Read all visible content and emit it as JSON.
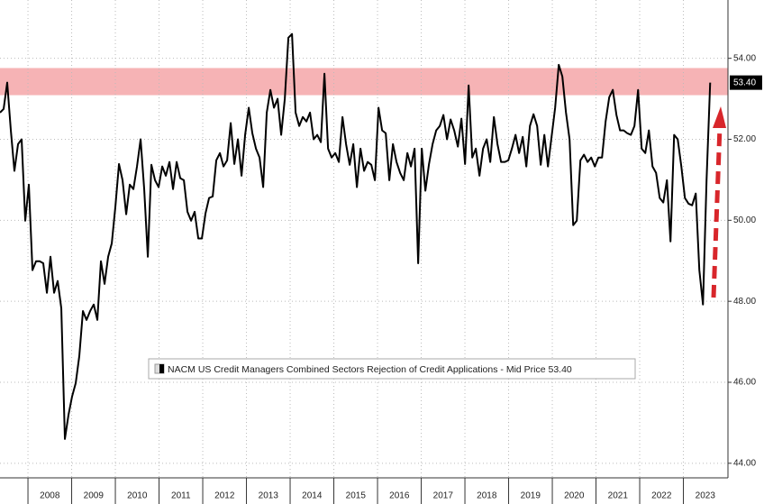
{
  "chart_data": {
    "type": "line",
    "series": [
      {
        "name": "NACM US Credit Managers Combined Sectors Rejection of Credit Applications - Mid Price 53.40",
        "color": "#000000",
        "x": [
          2007.36,
          2007.443,
          2007.525,
          2007.608,
          2007.69,
          2007.773,
          2007.855,
          2007.938,
          2008.02,
          2008.103,
          2008.185,
          2008.268,
          2008.35,
          2008.433,
          2008.515,
          2008.598,
          2008.68,
          2008.763,
          2008.845,
          2008.928,
          2009.01,
          2009.093,
          2009.175,
          2009.258,
          2009.34,
          2009.423,
          2009.505,
          2009.588,
          2009.67,
          2009.753,
          2009.835,
          2009.918,
          2010.0,
          2010.083,
          2010.165,
          2010.248,
          2010.33,
          2010.413,
          2010.495,
          2010.578,
          2010.66,
          2010.743,
          2010.825,
          2010.908,
          2010.99,
          2011.073,
          2011.155,
          2011.238,
          2011.32,
          2011.403,
          2011.485,
          2011.568,
          2011.65,
          2011.733,
          2011.815,
          2011.898,
          2011.98,
          2012.063,
          2012.145,
          2012.228,
          2012.31,
          2012.393,
          2012.475,
          2012.558,
          2012.64,
          2012.723,
          2012.805,
          2012.888,
          2012.97,
          2013.053,
          2013.135,
          2013.218,
          2013.3,
          2013.383,
          2013.465,
          2013.548,
          2013.63,
          2013.713,
          2013.795,
          2013.878,
          2013.96,
          2014.043,
          2014.125,
          2014.208,
          2014.29,
          2014.373,
          2014.455,
          2014.538,
          2014.62,
          2014.703,
          2014.785,
          2014.868,
          2014.95,
          2015.033,
          2015.115,
          2015.198,
          2015.28,
          2015.363,
          2015.445,
          2015.528,
          2015.61,
          2015.693,
          2015.775,
          2015.858,
          2015.94,
          2016.023,
          2016.105,
          2016.188,
          2016.27,
          2016.353,
          2016.435,
          2016.518,
          2016.6,
          2016.683,
          2016.765,
          2016.848,
          2016.93,
          2017.013,
          2017.095,
          2017.178,
          2017.26,
          2017.343,
          2017.425,
          2017.508,
          2017.59,
          2017.673,
          2017.755,
          2017.838,
          2017.92,
          2018.003,
          2018.085,
          2018.168,
          2018.25,
          2018.333,
          2018.415,
          2018.498,
          2018.58,
          2018.663,
          2018.745,
          2018.828,
          2018.91,
          2018.993,
          2019.075,
          2019.158,
          2019.24,
          2019.323,
          2019.405,
          2019.488,
          2019.57,
          2019.653,
          2019.735,
          2019.818,
          2019.9,
          2019.983,
          2020.065,
          2020.148,
          2020.23,
          2020.313,
          2020.395,
          2020.478,
          2020.56,
          2020.643,
          2020.725,
          2020.808,
          2020.89,
          2020.973,
          2021.055,
          2021.138,
          2021.22,
          2021.303,
          2021.385,
          2021.468,
          2021.55,
          2021.633,
          2021.715,
          2021.798,
          2021.88,
          2021.963,
          2022.045,
          2022.128,
          2022.21,
          2022.293,
          2022.375,
          2022.458,
          2022.54,
          2022.623,
          2022.705,
          2022.788,
          2022.87,
          2022.953,
          2023.035,
          2023.118,
          2023.2,
          2023.283,
          2023.365,
          2023.448,
          2023.53,
          2023.613
        ],
        "values": [
          52.66,
          52.75,
          53.4,
          52.22,
          51.22,
          51.88,
          52.0,
          49.99,
          50.88,
          48.77,
          48.99,
          48.99,
          48.94,
          48.21,
          49.1,
          48.21,
          48.5,
          47.83,
          44.6,
          45.2,
          45.65,
          45.98,
          46.65,
          47.76,
          47.54,
          47.76,
          47.92,
          47.54,
          48.99,
          48.43,
          49.1,
          49.43,
          50.33,
          51.39,
          50.99,
          50.15,
          50.88,
          50.77,
          51.33,
          52.0,
          50.77,
          49.1,
          51.37,
          50.99,
          50.82,
          51.33,
          51.1,
          51.44,
          50.77,
          51.44,
          51.04,
          50.99,
          50.21,
          49.99,
          50.21,
          49.55,
          49.55,
          50.17,
          50.55,
          50.59,
          51.48,
          51.66,
          51.33,
          51.48,
          52.4,
          51.39,
          52.0,
          51.1,
          52.11,
          52.78,
          52.15,
          51.77,
          51.55,
          50.82,
          52.66,
          53.22,
          52.78,
          53.0,
          52.11,
          53.0,
          54.51,
          54.6,
          52.66,
          52.33,
          52.55,
          52.44,
          52.66,
          52.0,
          52.11,
          51.93,
          53.62,
          51.77,
          51.55,
          51.66,
          51.44,
          52.55,
          51.88,
          51.37,
          51.88,
          50.82,
          51.77,
          51.22,
          51.44,
          51.37,
          50.99,
          52.78,
          52.22,
          52.15,
          50.99,
          51.88,
          51.44,
          51.17,
          50.99,
          51.66,
          51.33,
          51.77,
          48.94,
          51.77,
          50.73,
          51.39,
          51.88,
          52.22,
          52.33,
          52.6,
          52.0,
          52.49,
          52.22,
          51.82,
          52.51,
          51.39,
          53.33,
          51.55,
          51.77,
          51.1,
          51.77,
          52.0,
          51.44,
          52.55,
          51.88,
          51.44,
          51.44,
          51.48,
          51.77,
          52.11,
          51.66,
          52.06,
          51.33,
          52.33,
          52.62,
          52.33,
          51.37,
          52.11,
          51.33,
          52.06,
          52.78,
          53.84,
          53.55,
          52.66,
          52.0,
          49.88,
          49.99,
          51.48,
          51.62,
          51.44,
          51.55,
          51.33,
          51.55,
          51.55,
          52.44,
          53.04,
          53.22,
          52.6,
          52.22,
          52.22,
          52.15,
          52.11,
          52.33,
          53.22,
          51.77,
          51.66,
          52.22,
          51.33,
          51.17,
          50.55,
          50.44,
          50.99,
          49.48,
          52.11,
          52.0,
          51.33,
          50.55,
          50.41,
          50.37,
          50.66,
          48.77,
          47.92,
          50.99,
          53.4
        ]
      }
    ],
    "xlim": [
      2007.36,
      2024.02
    ],
    "xticks": [
      {
        "value": 2008,
        "label": "2008"
      },
      {
        "value": 2009,
        "label": "2009"
      },
      {
        "value": 2010,
        "label": "2010"
      },
      {
        "value": 2011,
        "label": "2011"
      },
      {
        "value": 2012,
        "label": "2012"
      },
      {
        "value": 2013,
        "label": "2013"
      },
      {
        "value": 2014,
        "label": "2014"
      },
      {
        "value": 2015,
        "label": "2015"
      },
      {
        "value": 2016,
        "label": "2016"
      },
      {
        "value": 2017,
        "label": "2017"
      },
      {
        "value": 2018,
        "label": "2018"
      },
      {
        "value": 2019,
        "label": "2019"
      },
      {
        "value": 2020,
        "label": "2020"
      },
      {
        "value": 2021,
        "label": "2021"
      },
      {
        "value": 2022,
        "label": "2022"
      },
      {
        "value": 2023,
        "label": "2023"
      }
    ],
    "ylim": [
      43.64,
      55.44
    ],
    "yticks": [
      {
        "value": 44,
        "label": "44.00"
      },
      {
        "value": 46,
        "label": "46.00"
      },
      {
        "value": 48,
        "label": "48.00"
      },
      {
        "value": 50,
        "label": "50.00"
      },
      {
        "value": 52,
        "label": "52.00"
      },
      {
        "value": 54,
        "label": "54.00"
      }
    ],
    "last_value_label": {
      "value": 53.4,
      "label": "53.40"
    },
    "highlight_band": {
      "range": [
        53.09,
        53.76
      ],
      "color": "#f6b3b5"
    },
    "grid": true,
    "legend": "lower center"
  }
}
